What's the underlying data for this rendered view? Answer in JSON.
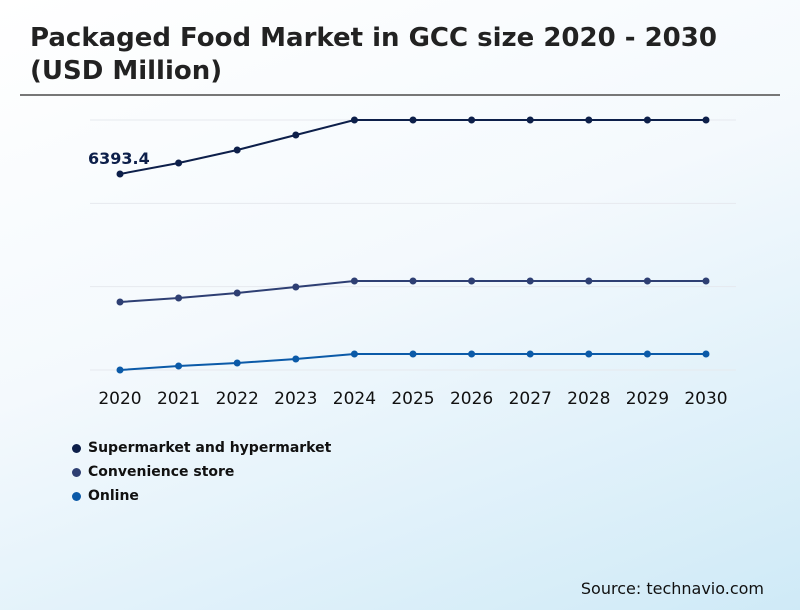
{
  "chart_data": {
    "type": "line",
    "title": "Packaged Food Market in GCC size 2020 - 2030 (USD Million)",
    "xlabel": "",
    "ylabel": "",
    "x": [
      "2020",
      "2021",
      "2022",
      "2023",
      "2024",
      "2025",
      "2026",
      "2027",
      "2028",
      "2029",
      "2030"
    ],
    "ylim": [
      0,
      8154
    ],
    "grid": true,
    "legend_position": "bottom-left",
    "series": [
      {
        "name": "Supermarket and hypermarket",
        "color": "#0d1f4a",
        "values": [
          6393.4,
          6752,
          7176,
          7665,
          8154,
          8154,
          8154,
          8154,
          8154,
          8154,
          8154
        ]
      },
      {
        "name": "Convenience store",
        "color": "#2e3f73",
        "values": [
          2218,
          2349,
          2512,
          2708,
          2903,
          2903,
          2903,
          2903,
          2903,
          2903,
          2903
        ]
      },
      {
        "name": "Online",
        "color": "#0b5aa8",
        "values": [
          0,
          130,
          228,
          359,
          522,
          522,
          522,
          522,
          522,
          522,
          522
        ]
      }
    ],
    "annotations": [
      {
        "series": 0,
        "x": "2020",
        "text": "6393.4"
      }
    ]
  },
  "source": "Source: technavio.com"
}
